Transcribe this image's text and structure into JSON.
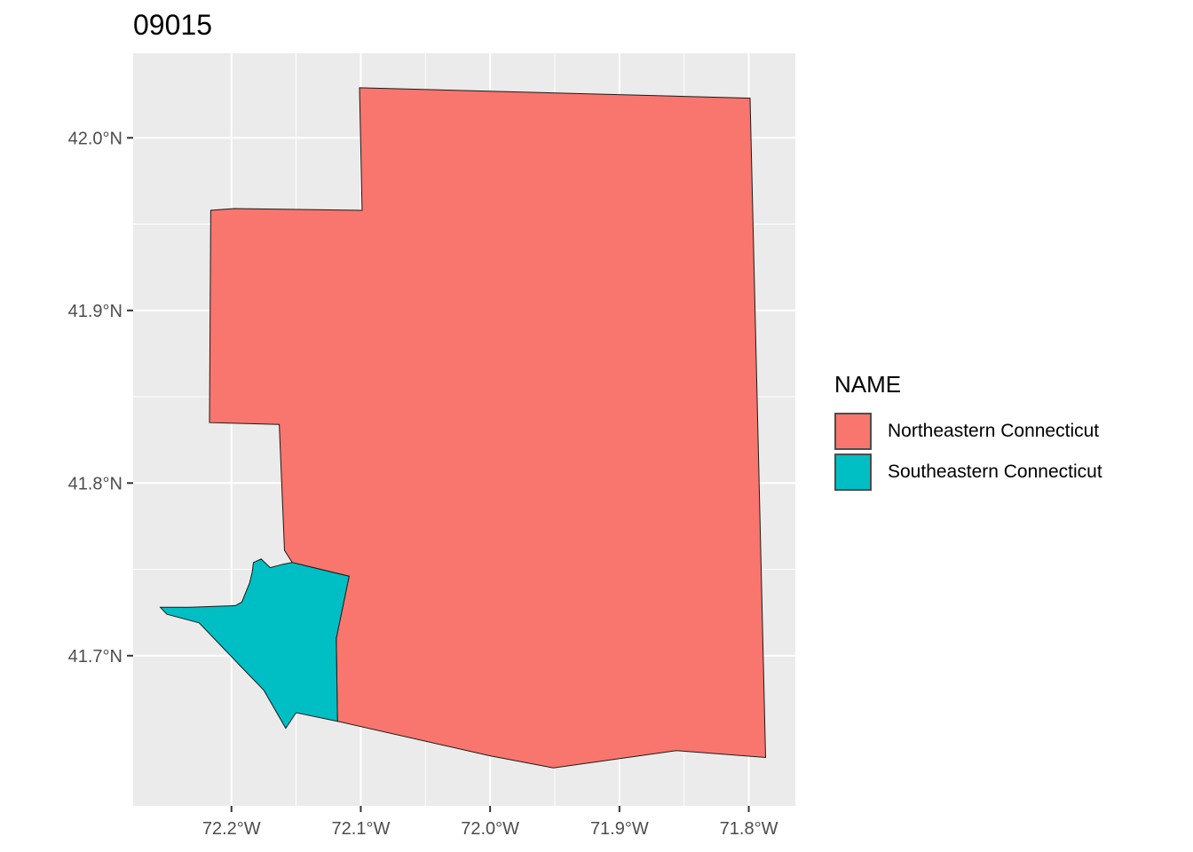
{
  "title": "09015",
  "chart_data": {
    "type": "map",
    "x_ticks": [
      "72.2°W",
      "72.1°W",
      "72.0°W",
      "71.9°W",
      "71.8°W"
    ],
    "y_ticks": [
      "42.0°N",
      "41.9°N",
      "41.8°N",
      "41.7°N"
    ],
    "x_tick_values": [
      -72.2,
      -72.1,
      -72.0,
      -71.9,
      -71.8
    ],
    "y_tick_values": [
      42.0,
      41.9,
      41.8,
      41.7
    ],
    "xlim": [
      -72.276,
      -71.764
    ],
    "ylim": [
      41.613,
      42.049
    ],
    "grid": true,
    "legend_title": "NAME",
    "legend_position": "right",
    "regions": [
      {
        "name": "Northeastern Connecticut",
        "color": "#F8766D",
        "polygon": [
          [
            -72.101,
            42.029
          ],
          [
            -71.799,
            42.023
          ],
          [
            -71.787,
            41.641
          ],
          [
            -71.856,
            41.645
          ],
          [
            -71.951,
            41.635
          ],
          [
            -72.0,
            41.642
          ],
          [
            -72.118,
            41.662
          ],
          [
            -72.119,
            41.71
          ],
          [
            -72.109,
            41.746
          ],
          [
            -72.153,
            41.754
          ],
          [
            -72.159,
            41.761
          ],
          [
            -72.163,
            41.834
          ],
          [
            -72.217,
            41.835
          ],
          [
            -72.216,
            41.958
          ],
          [
            -72.198,
            41.959
          ],
          [
            -72.099,
            41.958
          ],
          [
            -72.101,
            42.029
          ]
        ]
      },
      {
        "name": "Southeastern Connecticut",
        "color": "#00BFC4",
        "polygon": [
          [
            -72.153,
            41.754
          ],
          [
            -72.109,
            41.746
          ],
          [
            -72.119,
            41.71
          ],
          [
            -72.118,
            41.662
          ],
          [
            -72.15,
            41.667
          ],
          [
            -72.158,
            41.658
          ],
          [
            -72.175,
            41.68
          ],
          [
            -72.193,
            41.694
          ],
          [
            -72.225,
            41.719
          ],
          [
            -72.25,
            41.724
          ],
          [
            -72.255,
            41.728
          ],
          [
            -72.232,
            41.728
          ],
          [
            -72.197,
            41.729
          ],
          [
            -72.192,
            41.731
          ],
          [
            -72.186,
            41.742
          ],
          [
            -72.184,
            41.748
          ],
          [
            -72.183,
            41.754
          ],
          [
            -72.177,
            41.756
          ],
          [
            -72.17,
            41.751
          ],
          [
            -72.16,
            41.753
          ],
          [
            -72.153,
            41.754
          ]
        ]
      }
    ]
  }
}
